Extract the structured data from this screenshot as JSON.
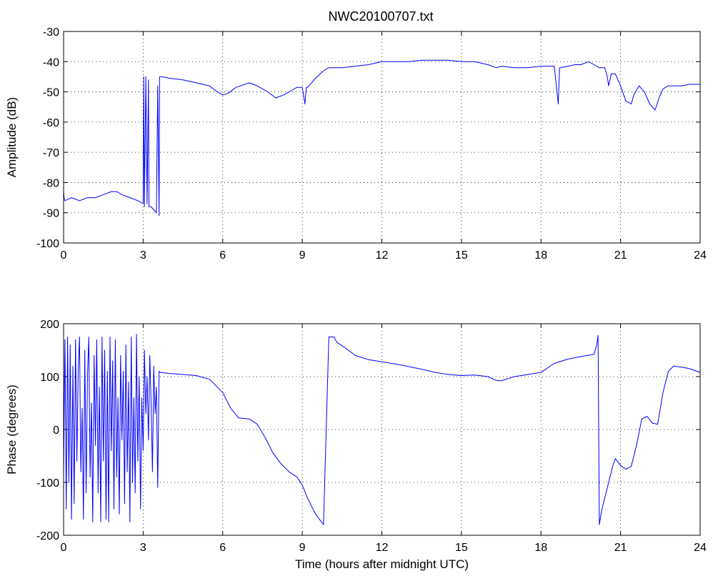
{
  "chart_data": [
    {
      "type": "line",
      "title": "NWC20100707.txt",
      "xlabel": "",
      "ylabel": "Amplitude (dB)",
      "xlim": [
        0,
        24
      ],
      "ylim": [
        -100,
        -30
      ],
      "xticks": [
        "0",
        "3",
        "6",
        "9",
        "12",
        "15",
        "18",
        "21",
        "24"
      ],
      "yticks": [
        "-30",
        "-40",
        "-50",
        "-60",
        "-70",
        "-80",
        "-90",
        "-100"
      ],
      "grid": true,
      "color": "#0000ff",
      "series": [
        {
          "x": [
            0,
            0.02,
            0.05,
            0.3,
            0.6,
            0.9,
            1.2,
            1.5,
            1.8,
            2.0,
            2.2,
            2.5,
            2.8,
            3.0,
            3.02,
            3.05,
            3.1,
            3.15,
            3.2,
            3.22,
            3.3,
            3.4,
            3.5,
            3.55,
            3.6,
            3.62,
            3.65,
            3.7,
            4.0,
            4.5,
            5.0,
            5.5,
            5.8,
            6.0,
            6.2,
            6.5,
            7.0,
            7.3,
            7.7,
            8.0,
            8.3,
            8.6,
            8.8,
            9.0,
            9.1,
            9.15,
            9.2,
            9.5,
            9.8,
            10.0,
            10.5,
            11.0,
            11.5,
            12.0,
            12.5,
            13.0,
            13.5,
            14.0,
            14.5,
            15.0,
            15.5,
            16.0,
            16.3,
            16.5,
            17.0,
            17.5,
            18.0,
            18.5,
            18.65,
            18.7,
            18.75,
            19.0,
            19.3,
            19.5,
            19.8,
            20.0,
            20.2,
            20.4,
            20.5,
            20.55,
            20.6,
            20.65,
            20.8,
            21.0,
            21.2,
            21.4,
            21.5,
            21.7,
            21.9,
            22.1,
            22.3,
            22.45,
            22.6,
            22.8,
            23.0,
            23.3,
            23.6,
            24.0
          ],
          "y": [
            -83,
            -85,
            -86,
            -85,
            -86,
            -85,
            -85,
            -84,
            -83,
            -83,
            -84,
            -85,
            -86,
            -87,
            -45,
            -88,
            -45,
            -87,
            -46,
            -88,
            -88,
            -89,
            -90,
            -48,
            -91,
            -45,
            -45,
            -45,
            -45.5,
            -46,
            -47,
            -48,
            -50,
            -51,
            -50.5,
            -48.5,
            -47,
            -48,
            -50,
            -52,
            -51,
            -49.5,
            -48.5,
            -48.5,
            -54,
            -48.5,
            -48.5,
            -45.5,
            -43,
            -42,
            -42,
            -41.5,
            -41,
            -40,
            -40,
            -40,
            -39.5,
            -39.5,
            -39.5,
            -40,
            -40,
            -41,
            -42,
            -41.5,
            -42,
            -42,
            -41.5,
            -41.5,
            -54,
            -42,
            -42,
            -41.5,
            -41,
            -41,
            -40,
            -41,
            -42,
            -42,
            -45,
            -48,
            -46,
            -44,
            -44,
            -48,
            -53,
            -54,
            -51,
            -48,
            -50,
            -54,
            -56,
            -52,
            -49,
            -48,
            -48,
            -48,
            -47.5,
            -47.5
          ]
        }
      ]
    },
    {
      "type": "line",
      "title": "",
      "xlabel": "Time (hours after midnight UTC)",
      "ylabel": "Phase (degrees)",
      "xlim": [
        0,
        24
      ],
      "ylim": [
        -200,
        200
      ],
      "xticks": [
        "0",
        "3",
        "6",
        "9",
        "12",
        "15",
        "18",
        "21",
        "24"
      ],
      "yticks": [
        "200",
        "100",
        "0",
        "-100",
        "-200"
      ],
      "grid": true,
      "color": "#0000ff",
      "series": [
        {
          "x": [
            0,
            0.05,
            0.1,
            0.15,
            0.2,
            0.25,
            0.3,
            0.35,
            0.4,
            0.45,
            0.5,
            0.55,
            0.6,
            0.65,
            0.7,
            0.75,
            0.8,
            0.85,
            0.9,
            0.95,
            1.0,
            1.05,
            1.1,
            1.15,
            1.2,
            1.25,
            1.3,
            1.35,
            1.4,
            1.45,
            1.5,
            1.55,
            1.6,
            1.65,
            1.7,
            1.75,
            1.8,
            1.85,
            1.9,
            1.95,
            2.0,
            2.05,
            2.1,
            2.15,
            2.2,
            2.25,
            2.3,
            2.35,
            2.4,
            2.45,
            2.5,
            2.55,
            2.6,
            2.65,
            2.7,
            2.75,
            2.8,
            2.85,
            2.9,
            2.95,
            3.0,
            3.05,
            3.1,
            3.15,
            3.2,
            3.25,
            3.3,
            3.35,
            3.4,
            3.45,
            3.5,
            3.55,
            3.6,
            3.65,
            4.0,
            4.5,
            5.0,
            5.5,
            6.0,
            6.3,
            6.6,
            7.0,
            7.3,
            7.6,
            7.9,
            8.2,
            8.5,
            8.8,
            9.0,
            9.2,
            9.5,
            9.8,
            10.0,
            10.2,
            10.25,
            10.3,
            10.6,
            11.0,
            11.5,
            12.0,
            12.5,
            13.0,
            13.5,
            14.0,
            14.5,
            15.0,
            15.5,
            16.0,
            16.3,
            16.5,
            16.8,
            17.0,
            17.5,
            18.0,
            18.5,
            19.0,
            19.5,
            20.0,
            20.1,
            20.15,
            20.2,
            20.3,
            20.5,
            20.7,
            20.8,
            21.0,
            21.2,
            21.4,
            21.6,
            21.8,
            22.0,
            22.2,
            22.4,
            22.6,
            22.8,
            23.0,
            23.3,
            23.6,
            24.0
          ],
          "y": [
            -80,
            170,
            -150,
            175,
            -100,
            160,
            -170,
            120,
            -140,
            170,
            -60,
            110,
            175,
            -80,
            40,
            -170,
            150,
            -120,
            100,
            175,
            -90,
            50,
            -175,
            140,
            -30,
            170,
            -120,
            80,
            -175,
            175,
            -60,
            150,
            -170,
            110,
            -175,
            175,
            -40,
            130,
            -150,
            170,
            -90,
            60,
            -160,
            140,
            -20,
            110,
            -140,
            160,
            -80,
            90,
            -175,
            175,
            -100,
            60,
            -120,
            180,
            -60,
            100,
            -150,
            60,
            -40,
            150,
            30,
            100,
            -20,
            140,
            50,
            -80,
            120,
            30,
            80,
            -110,
            110,
            108,
            106,
            104,
            102,
            95,
            70,
            40,
            22,
            20,
            10,
            -15,
            -45,
            -65,
            -80,
            -90,
            -105,
            -130,
            -160,
            -180,
            175,
            175,
            170,
            165,
            155,
            140,
            132,
            128,
            124,
            119,
            114,
            108,
            104,
            102,
            103,
            100,
            93,
            92,
            97,
            100,
            104,
            108,
            125,
            133,
            138,
            142,
            160,
            178,
            -180,
            -150,
            -110,
            -70,
            -55,
            -68,
            -75,
            -70,
            -30,
            20,
            25,
            12,
            10,
            70,
            110,
            120,
            118,
            115,
            108
          ],
          "note": ""
        }
      ]
    }
  ]
}
